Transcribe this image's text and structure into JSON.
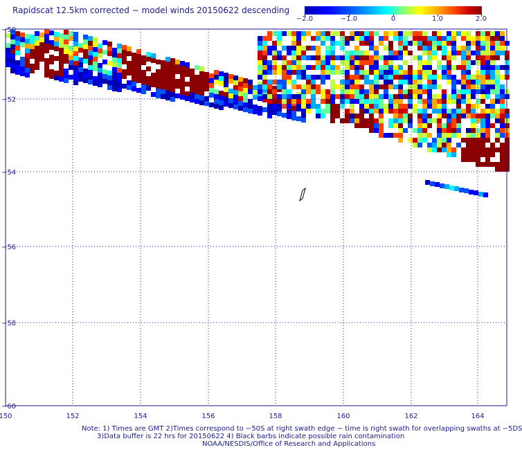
{
  "title": "Rapidscat 12.5km corrected − model winds 20150622 descending",
  "colorbar": {
    "labels": [
      "−2.0",
      "−1.0",
      "0",
      "1.0",
      "2.0"
    ],
    "min": -2.0,
    "max": 2.0
  },
  "map": {
    "lon_labels": [
      "150",
      "152",
      "154",
      "156",
      "158",
      "160",
      "162",
      "164"
    ],
    "lat_labels": [
      "−50",
      "−52",
      "−54",
      "−56",
      "−58",
      "−60"
    ],
    "lon_range": [
      150,
      165
    ],
    "lat_range": [
      -50,
      -60
    ],
    "grid": true
  },
  "footer": {
    "line1": "Note: 1) Times are GMT 2)Times correspond to −50S at right swath edge − time is right swath for overlapping swaths at −5DS",
    "line2": "3)Data buffer is 22 hrs for 20150622 4) Black barbs indicate possible rain contamination",
    "line3": "NOAA/NESDIS/Office of Research and Applications"
  },
  "colors": {
    "text": "#1a1a8c",
    "grid": "#1a1a8c",
    "dark_red": "#8b0000",
    "blue": "#0000ff"
  }
}
